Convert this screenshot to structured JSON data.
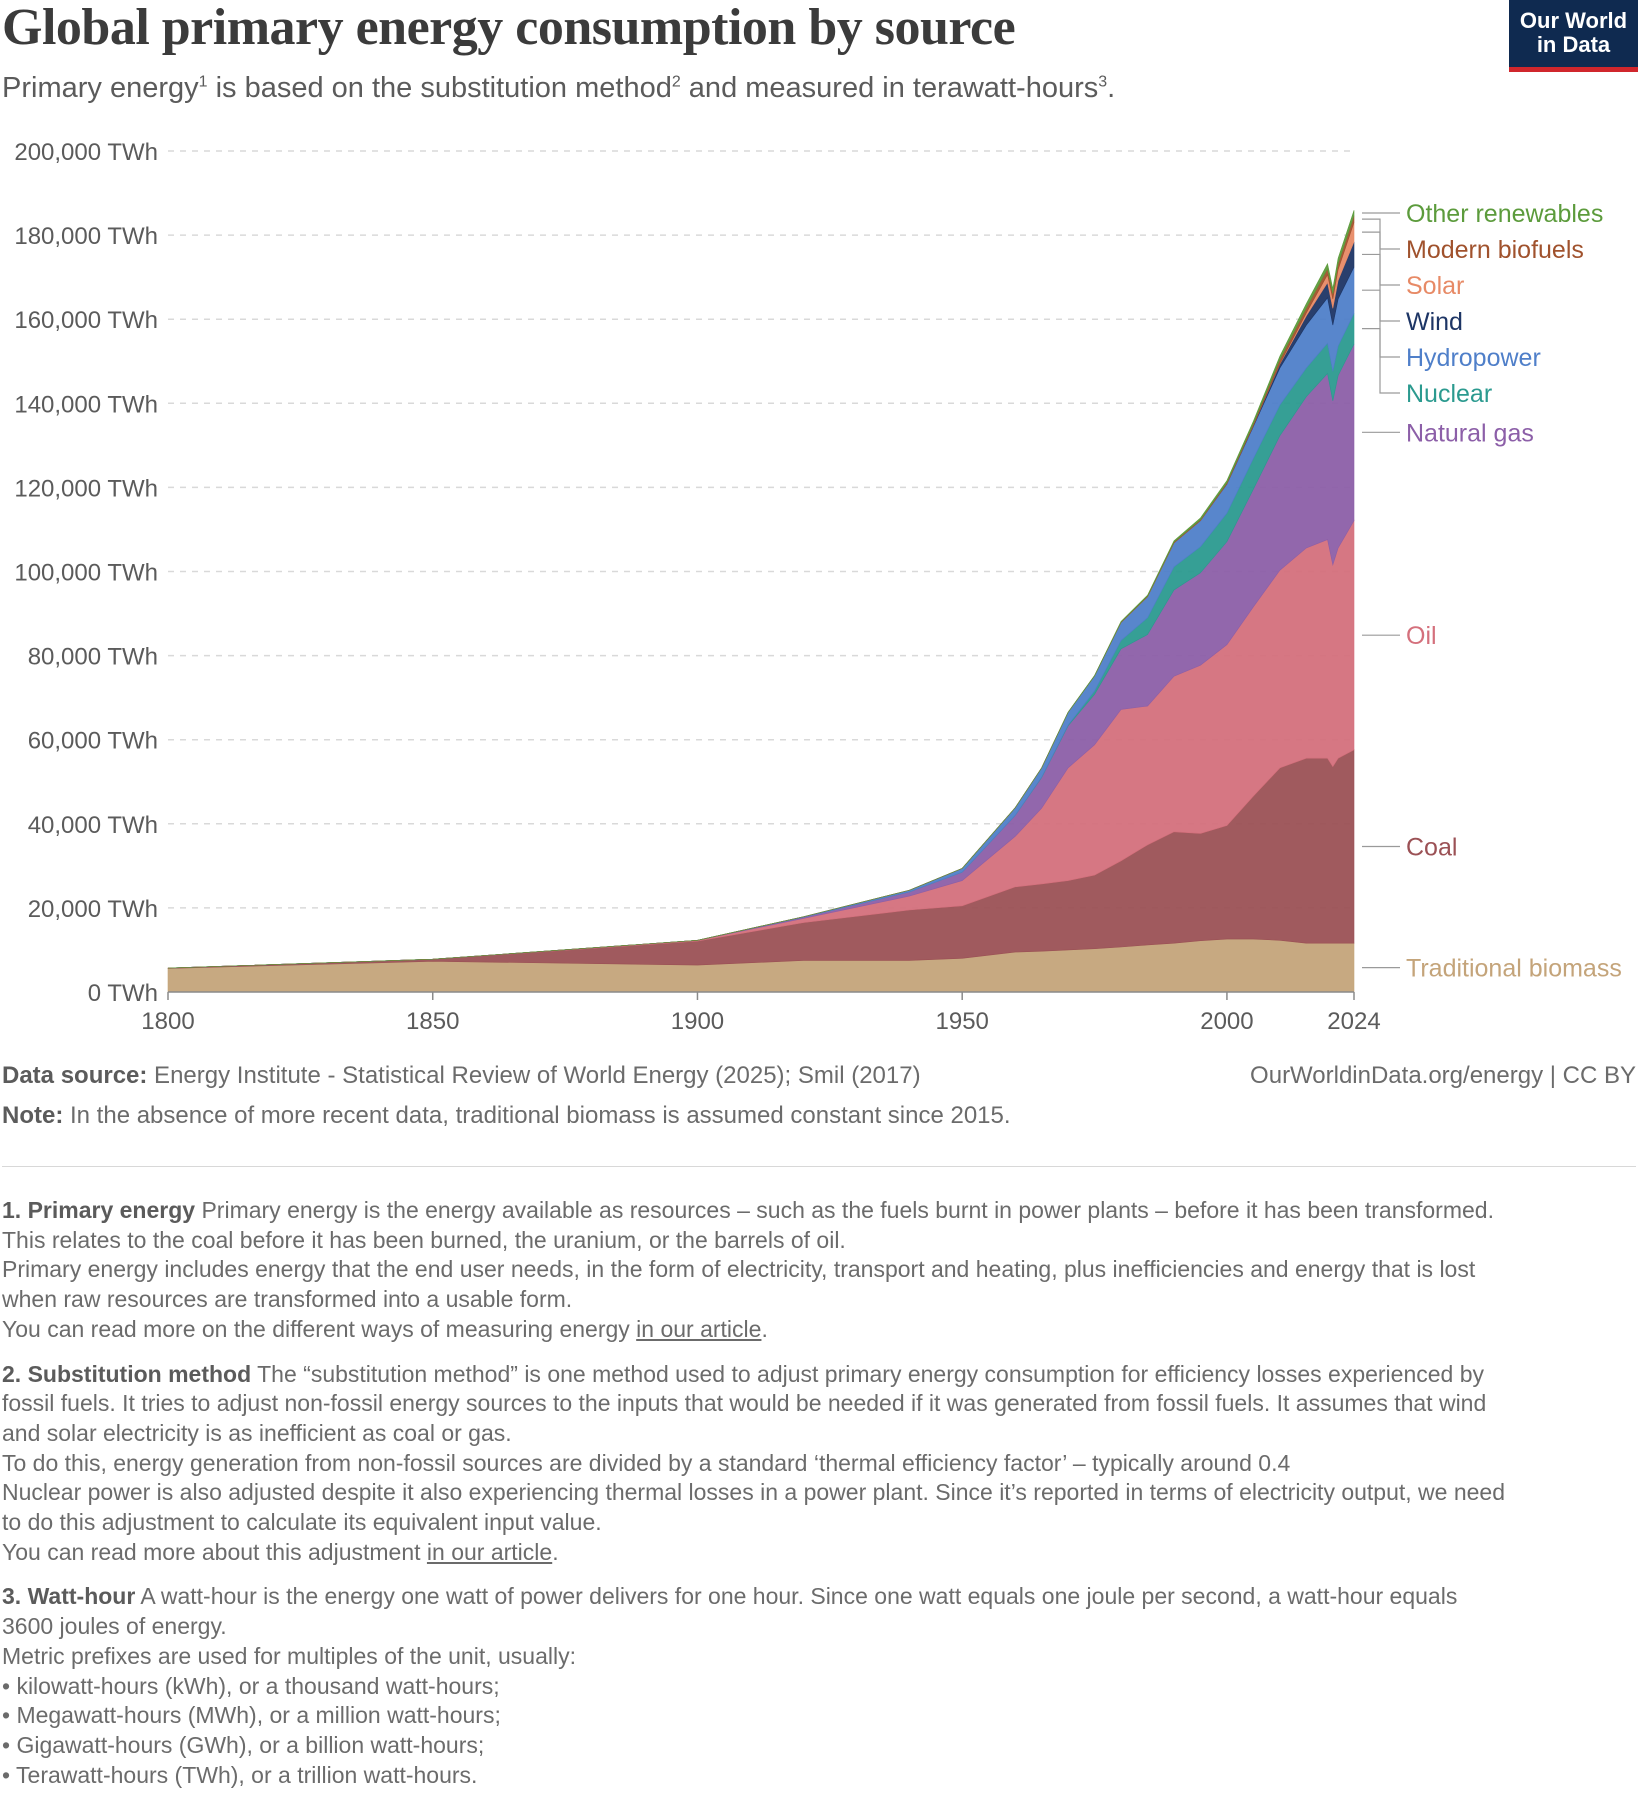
{
  "header": {
    "title": "Global primary energy consumption by source",
    "subtitle_parts": [
      "Primary energy",
      "1",
      " is based on the substitution method",
      "2",
      " and measured in terawatt-hours",
      "3",
      "."
    ],
    "logo_line1": "Our World",
    "logo_line2": "in Data"
  },
  "colors": {
    "traditional_biomass": "#c4a47a",
    "coal": "#9b5155",
    "oil": "#d4707c",
    "natural_gas": "#8c5fa8",
    "nuclear": "#2b9a8f",
    "hydropower": "#4f7fc9",
    "wind": "#1d3565",
    "solar": "#e78a66",
    "modern_biofuels": "#a0522d",
    "other_renewables": "#5c9b3c"
  },
  "chart_data": {
    "type": "area",
    "stacked": true,
    "title": "Global primary energy consumption by source",
    "ylabel": "",
    "xlabel": "",
    "ylim": [
      0,
      200000
    ],
    "xlim": [
      1800,
      2024
    ],
    "x_ticks": [
      "1800",
      "1850",
      "1900",
      "1950",
      "2000",
      "2024"
    ],
    "y_ticks": [
      "0 TWh",
      "20,000 TWh",
      "40,000 TWh",
      "60,000 TWh",
      "80,000 TWh",
      "100,000 TWh",
      "120,000 TWh",
      "140,000 TWh",
      "160,000 TWh",
      "180,000 TWh",
      "200,000 TWh"
    ],
    "grid": true,
    "legend_placement": "right (labels at series ends)",
    "x": [
      1800,
      1850,
      1900,
      1920,
      1940,
      1950,
      1960,
      1965,
      1970,
      1975,
      1980,
      1985,
      1990,
      1995,
      2000,
      2005,
      2010,
      2015,
      2019,
      2020,
      2021,
      2024
    ],
    "series": [
      {
        "name": "Traditional biomass",
        "values": [
          5600,
          7300,
          6400,
          7500,
          7500,
          8000,
          9500,
          9700,
          10000,
          10300,
          10700,
          11200,
          11600,
          12200,
          12600,
          12600,
          12300,
          11600,
          11600,
          11600,
          11600,
          11600
        ]
      },
      {
        "name": "Coal",
        "values": [
          100,
          500,
          5700,
          9000,
          12000,
          12500,
          15500,
          16000,
          16500,
          17500,
          20500,
          23800,
          26500,
          25500,
          27000,
          34000,
          41000,
          44000,
          44000,
          42000,
          44000,
          46000
        ]
      },
      {
        "name": "Oil",
        "values": [
          0,
          0,
          200,
          1000,
          3300,
          6000,
          12000,
          18000,
          26800,
          31000,
          36000,
          33000,
          37000,
          40000,
          43000,
          45000,
          47000,
          50000,
          52000,
          48000,
          50000,
          54500
        ]
      },
      {
        "name": "Natural gas",
        "values": [
          0,
          0,
          0,
          300,
          1000,
          2000,
          5000,
          7300,
          10000,
          12000,
          14400,
          17000,
          20500,
          22000,
          24500,
          28000,
          32000,
          36000,
          39500,
          39000,
          41000,
          42000
        ]
      },
      {
        "name": "Nuclear",
        "values": [
          0,
          0,
          0,
          0,
          0,
          0,
          0,
          100,
          200,
          800,
          2000,
          4000,
          5500,
          6200,
          6800,
          7300,
          7300,
          6800,
          7200,
          7000,
          7000,
          7300
        ]
      },
      {
        "name": "Hydropower",
        "values": [
          0,
          0,
          0,
          100,
          400,
          900,
          1800,
          2200,
          3000,
          3600,
          4300,
          5000,
          5700,
          6200,
          6900,
          7600,
          8800,
          10200,
          10800,
          11000,
          11200,
          11000
        ]
      },
      {
        "name": "Wind",
        "values": [
          0,
          0,
          0,
          0,
          0,
          0,
          0,
          0,
          0,
          0,
          0,
          0,
          10,
          20,
          80,
          240,
          930,
          2200,
          3600,
          4000,
          4400,
          6000
        ]
      },
      {
        "name": "Solar",
        "values": [
          0,
          0,
          0,
          0,
          0,
          0,
          0,
          0,
          0,
          0,
          0,
          0,
          0,
          0,
          5,
          15,
          100,
          700,
          1900,
          2200,
          2600,
          4600
        ]
      },
      {
        "name": "Modern biofuels",
        "values": [
          0,
          0,
          0,
          0,
          0,
          0,
          0,
          0,
          0,
          0,
          100,
          150,
          200,
          220,
          250,
          400,
          1000,
          1200,
          1400,
          1300,
          1400,
          1600
        ]
      },
      {
        "name": "Other renewables",
        "values": [
          0,
          0,
          0,
          0,
          0,
          0,
          0,
          0,
          50,
          80,
          130,
          200,
          300,
          400,
          500,
          600,
          800,
          1000,
          1200,
          1200,
          1300,
          1300
        ]
      }
    ]
  },
  "footer": {
    "source_label": "Data source:",
    "source_text": " Energy Institute - Statistical Review of World Energy (2025); Smil (2017)",
    "credit": "OurWorldinData.org/energy | CC BY",
    "note_label": "Note:",
    "note_text": " In the absence of more recent data, traditional biomass is assumed constant since 2015."
  },
  "footnotes": {
    "fn1": {
      "head": "1. Primary energy",
      "l1": " Primary energy is the energy available as resources – such as the fuels burnt in power plants – before it has been transformed.",
      "l2": "This relates to the coal before it has been burned, the uranium, or the barrels of oil.",
      "l3": "Primary energy includes energy that the end user needs, in the form of electricity, transport and heating, plus inefficiencies and energy that is lost",
      "l4": "when raw resources are transformed into a usable form.",
      "l5a": "You can read more on the different ways of measuring energy ",
      "link": "in our article",
      "l5b": "."
    },
    "fn2": {
      "head": "2. Substitution method",
      "l1": " The “substitution method” is one method used to adjust primary energy consumption for efficiency losses experienced by",
      "l2": "fossil fuels. It tries to adjust non-fossil energy sources to the inputs that would be needed if it was generated from fossil fuels. It assumes that wind",
      "l3": "and solar electricity is as inefficient as coal or gas.",
      "l4": "To do this, energy generation from non-fossil sources are divided by a standard ‘thermal efficiency factor’ – typically around 0.4",
      "l5": "Nuclear power is also adjusted despite it also experiencing thermal losses in a power plant. Since it’s reported in terms of electricity output, we need",
      "l6": "to do this adjustment to calculate its equivalent input value.",
      "l7a": "You can read more about this adjustment ",
      "link": "in our article",
      "l7b": "."
    },
    "fn3": {
      "head": "3. Watt-hour",
      "l1": " A watt-hour is the energy one watt of power delivers for one hour. Since one watt equals one joule per second, a watt-hour equals",
      "l2": "3600 joules of energy.",
      "l3": "Metric prefixes are used for multiples of the unit, usually:",
      "b1": "• kilowatt-hours (kWh), or a thousand watt-hours;",
      "b2": "• Megawatt-hours (MWh), or a million watt-hours;",
      "b3": "• Gigawatt-hours (GWh), or a billion watt-hours;",
      "b4": "• Terawatt-hours (TWh), or a trillion watt-hours."
    }
  }
}
